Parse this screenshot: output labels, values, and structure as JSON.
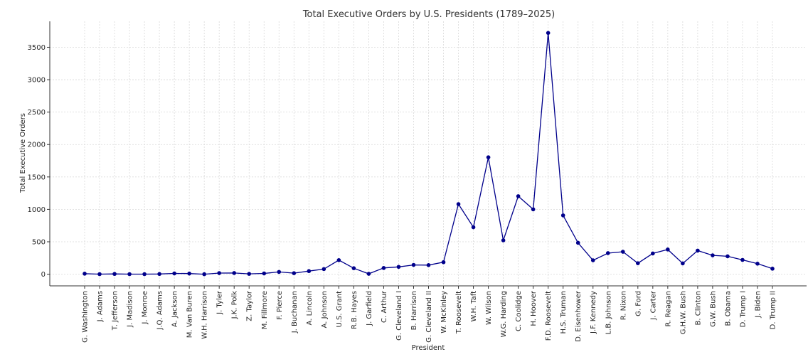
{
  "chart_data": {
    "type": "line",
    "title": "Total Executive Orders by U.S. Presidents (1789–2025)",
    "xlabel": "President",
    "ylabel": "Total Executive Orders",
    "ylim": [
      -180,
      3900
    ],
    "yticks": [
      0,
      500,
      1000,
      1500,
      2000,
      2500,
      3000,
      3500
    ],
    "ytick_labels": [
      "0",
      "500",
      "1000",
      "1500",
      "2000",
      "2500",
      "3000",
      "3500"
    ],
    "grid": true,
    "line_color": "#00008b",
    "categories": [
      "G. Washington",
      "J. Adams",
      "T. Jefferson",
      "J. Madison",
      "J. Monroe",
      "J.Q. Adams",
      "A. Jackson",
      "M. Van Buren",
      "W.H. Harrison",
      "J. Tyler",
      "J.K. Polk",
      "Z. Taylor",
      "M. Fillmore",
      "F. Pierce",
      "J. Buchanan",
      "A. Lincoln",
      "A. Johnson",
      "U.S. Grant",
      "R.B. Hayes",
      "J. Garfield",
      "C. Arthur",
      "G. Cleveland I",
      "B. Harrison",
      "G. Cleveland II",
      "W. McKinley",
      "T. Roosevelt",
      "W.H. Taft",
      "W. Wilson",
      "W.G. Harding",
      "C. Coolidge",
      "H. Hoover",
      "F.D. Roosevelt",
      "H.S. Truman",
      "D. Eisenhower",
      "J.F. Kennedy",
      "L.B. Johnson",
      "R. Nixon",
      "G. Ford",
      "J. Carter",
      "R. Reagan",
      "G.H.W. Bush",
      "B. Clinton",
      "G.W. Bush",
      "B. Obama",
      "D. Trump I",
      "J. Biden",
      "D. Trump II"
    ],
    "values": [
      8,
      1,
      4,
      1,
      1,
      3,
      12,
      10,
      0,
      17,
      18,
      5,
      12,
      35,
      16,
      48,
      79,
      217,
      92,
      6,
      96,
      113,
      143,
      140,
      185,
      1081,
      724,
      1803,
      522,
      1203,
      1000,
      3721,
      907,
      484,
      214,
      325,
      346,
      169,
      320,
      381,
      166,
      364,
      291,
      276,
      220,
      162,
      85
    ]
  }
}
